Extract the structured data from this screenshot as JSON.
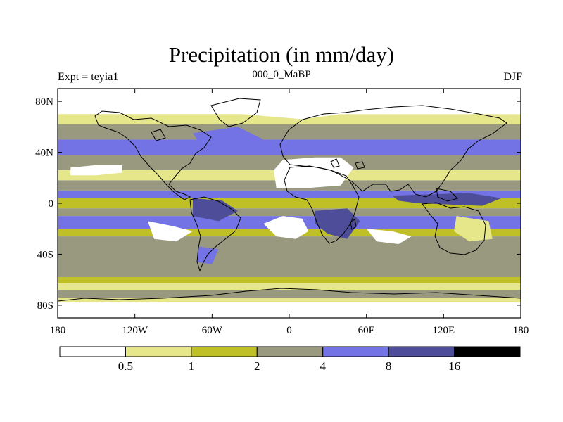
{
  "chart_data": {
    "type": "filled-contour-map",
    "title": "Precipitation (in mm/day)",
    "subtitle_left": "Expt = teyia1",
    "subtitle_center": "000_0_MaBP",
    "subtitle_right": "DJF",
    "x_ticks": [
      "180",
      "120W",
      "60W",
      "0",
      "60E",
      "120E",
      "180"
    ],
    "x_tick_values": [
      -180,
      -120,
      -60,
      0,
      60,
      120,
      180
    ],
    "y_ticks": [
      "80N",
      "40N",
      "0",
      "40S",
      "80S"
    ],
    "y_tick_values": [
      80,
      40,
      0,
      -40,
      -80
    ],
    "xlim": [
      -180,
      180
    ],
    "ylim": [
      -90,
      90
    ],
    "colorbar": {
      "labels": [
        "0.5",
        "1",
        "2",
        "4",
        "8",
        "16"
      ],
      "levels": [
        0.5,
        1,
        2,
        4,
        8,
        16
      ],
      "colors": [
        "#ffffff",
        "#e6e68a",
        "#bfbf26",
        "#999980",
        "#7373e6",
        "#4d4d99",
        "#000000"
      ]
    },
    "zonal_bands": [
      {
        "lat": [
          70,
          90
        ],
        "level": 0
      },
      {
        "lat": [
          62,
          70
        ],
        "level": 1
      },
      {
        "lat": [
          50,
          62
        ],
        "level": 3
      },
      {
        "lat": [
          38,
          50
        ],
        "level": 4
      },
      {
        "lat": [
          26,
          38
        ],
        "level": 3
      },
      {
        "lat": [
          18,
          26
        ],
        "level": 1
      },
      {
        "lat": [
          10,
          18
        ],
        "level": 3
      },
      {
        "lat": [
          4,
          10
        ],
        "level": 4
      },
      {
        "lat": [
          -4,
          4
        ],
        "level": 2
      },
      {
        "lat": [
          -10,
          -4
        ],
        "level": 3
      },
      {
        "lat": [
          -20,
          -10
        ],
        "level": 4
      },
      {
        "lat": [
          -26,
          -20
        ],
        "level": 2
      },
      {
        "lat": [
          -58,
          -26
        ],
        "level": 3
      },
      {
        "lat": [
          -63,
          -58
        ],
        "level": 2
      },
      {
        "lat": [
          -68,
          -63
        ],
        "level": 1
      },
      {
        "lat": [
          -74,
          -68
        ],
        "level": 3
      },
      {
        "lat": [
          -78,
          -74
        ],
        "level": 1
      },
      {
        "lat": [
          -90,
          -78
        ],
        "level": 0
      }
    ],
    "regions": [
      {
        "lonlat": [
          [
            -10,
            12
          ],
          [
            15,
            12
          ],
          [
            40,
            14
          ],
          [
            50,
            28
          ],
          [
            40,
            36
          ],
          [
            20,
            36
          ],
          [
            -5,
            34
          ],
          [
            -12,
            26
          ]
        ],
        "level": 0
      },
      {
        "lonlat": [
          [
            -170,
            22
          ],
          [
            -150,
            22
          ],
          [
            -130,
            24
          ],
          [
            -130,
            30
          ],
          [
            -150,
            30
          ],
          [
            -170,
            28
          ]
        ],
        "level": 0
      },
      {
        "lonlat": [
          [
            -20,
            -16
          ],
          [
            -5,
            -10
          ],
          [
            10,
            -12
          ],
          [
            15,
            -22
          ],
          [
            5,
            -28
          ],
          [
            -10,
            -26
          ]
        ],
        "level": 0
      },
      {
        "lonlat": [
          [
            -110,
            -14
          ],
          [
            -90,
            -18
          ],
          [
            -75,
            -22
          ],
          [
            -88,
            -30
          ],
          [
            -105,
            -28
          ]
        ],
        "level": 0
      },
      {
        "lonlat": [
          [
            60,
            -20
          ],
          [
            80,
            -22
          ],
          [
            95,
            -26
          ],
          [
            85,
            -32
          ],
          [
            68,
            -30
          ]
        ],
        "level": 0
      },
      {
        "lonlat": [
          [
            -180,
            90
          ],
          [
            180,
            90
          ],
          [
            180,
            70
          ],
          [
            40,
            70
          ],
          [
            10,
            66
          ],
          [
            -60,
            72
          ],
          [
            -180,
            70
          ]
        ],
        "level": 0
      },
      {
        "lonlat": [
          [
            -180,
            -78
          ],
          [
            180,
            -78
          ],
          [
            180,
            -90
          ],
          [
            -180,
            -90
          ]
        ],
        "level": 0
      },
      {
        "lonlat": [
          [
            20,
            -6
          ],
          [
            45,
            -4
          ],
          [
            55,
            -14
          ],
          [
            45,
            -28
          ],
          [
            30,
            -24
          ],
          [
            20,
            -16
          ]
        ],
        "level": 5
      },
      {
        "lonlat": [
          [
            -75,
            4
          ],
          [
            -52,
            2
          ],
          [
            -40,
            -6
          ],
          [
            -55,
            -14
          ],
          [
            -75,
            -10
          ]
        ],
        "level": 5
      },
      {
        "lonlat": [
          [
            80,
            6
          ],
          [
            140,
            8
          ],
          [
            165,
            4
          ],
          [
            150,
            -2
          ],
          [
            100,
            0
          ],
          [
            85,
            2
          ]
        ],
        "level": 5
      },
      {
        "lonlat": [
          [
            -70,
            -34
          ],
          [
            -55,
            -36
          ],
          [
            -60,
            -48
          ],
          [
            -72,
            -46
          ]
        ],
        "level": 4
      },
      {
        "lonlat": [
          [
            130,
            -10
          ],
          [
            155,
            -14
          ],
          [
            158,
            -28
          ],
          [
            140,
            -30
          ],
          [
            128,
            -22
          ]
        ],
        "level": 1
      },
      {
        "lonlat": [
          [
            -75,
            55
          ],
          [
            -40,
            60
          ],
          [
            -20,
            50
          ],
          [
            -45,
            45
          ],
          [
            -70,
            48
          ]
        ],
        "level": 4
      }
    ]
  }
}
